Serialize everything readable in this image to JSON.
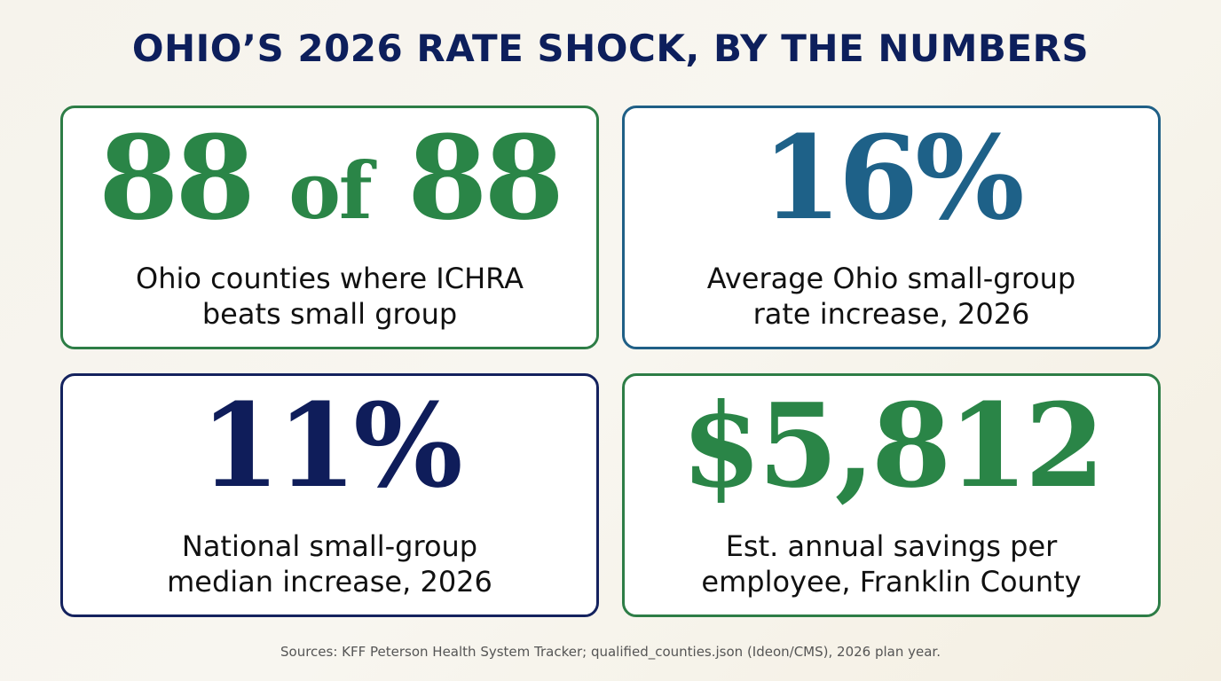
{
  "title": "OHIO’S 2026 RATE SHOCK, BY THE NUMBERS",
  "colors": {
    "navy": "#0d1f5c",
    "green": "#2a8547",
    "blue": "#1e6188"
  },
  "cards": [
    {
      "stat_number_1": "88",
      "stat_of": "of",
      "stat_number_2": "88",
      "desc_line_1": "Ohio counties where ICHRA",
      "desc_line_2": "beats small group"
    },
    {
      "stat": "16%",
      "desc_line_1": "Average Ohio small-group",
      "desc_line_2": "rate increase, 2026"
    },
    {
      "stat": "11%",
      "desc_line_1": "National small-group",
      "desc_line_2": "median increase, 2026"
    },
    {
      "stat": "$5,812",
      "desc_line_1": "Est. annual savings per",
      "desc_line_2": "employee, Franklin County"
    }
  ],
  "sources": "Sources: KFF Peterson Health System Tracker; qualified_counties.json (Ideon/CMS), 2026 plan year."
}
